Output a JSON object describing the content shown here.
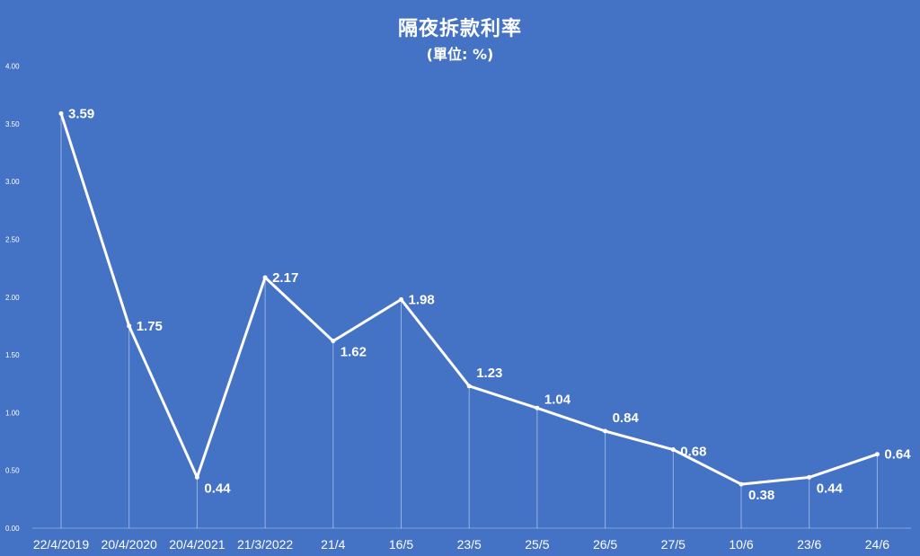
{
  "chart_data": {
    "type": "line",
    "title": "隔夜拆款利率",
    "subtitle": "(單位: %)",
    "xlabel": "",
    "ylabel": "",
    "categories": [
      "22/4/2019",
      "20/4/2020",
      "20/4/2021",
      "21/3/2022",
      "21/4",
      "16/5",
      "23/5",
      "25/5",
      "26/5",
      "27/5",
      "10/6",
      "23/6",
      "24/6"
    ],
    "values": [
      3.59,
      1.75,
      0.44,
      2.17,
      1.62,
      1.98,
      1.23,
      1.04,
      0.84,
      0.68,
      0.38,
      0.44,
      0.64
    ],
    "data_labels": [
      "3.59",
      "1.75",
      "0.44",
      "2.17",
      "1.62",
      "1.98",
      "1.23",
      "1.04",
      "0.84",
      "0.68",
      "0.38",
      "0.44",
      "0.64"
    ],
    "ylim": [
      0,
      4
    ],
    "yticks": [
      "0.00",
      "0.50",
      "1.00",
      "1.50",
      "2.00",
      "2.50",
      "3.00",
      "3.50",
      "4.00"
    ],
    "grid": false,
    "legend": "none",
    "colors": {
      "background": "#4472c4",
      "line": "#ffffff",
      "text": "#ffffff"
    }
  }
}
